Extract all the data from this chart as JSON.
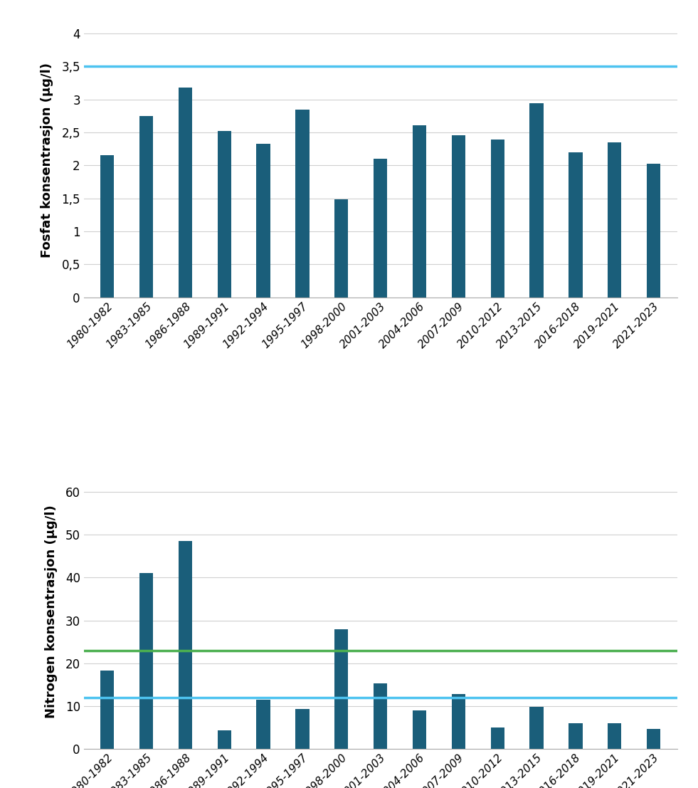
{
  "categories": [
    "1980-1982",
    "1983-1985",
    "1986-1988",
    "1989-1991",
    "1992-1994",
    "1995-1997",
    "1998-2000",
    "2001-2003",
    "2004-2006",
    "2007-2009",
    "2010-2012",
    "2013-2015",
    "2016-2018",
    "2019-2021",
    "2021-2023"
  ],
  "fosfat_values": [
    2.15,
    2.75,
    3.18,
    2.52,
    2.33,
    2.85,
    1.49,
    2.1,
    2.61,
    2.46,
    2.39,
    2.94,
    2.2,
    2.35,
    2.02
  ],
  "nitrogen_values": [
    18.2,
    41.0,
    48.5,
    4.2,
    11.5,
    9.3,
    28.0,
    15.2,
    9.0,
    12.8,
    5.0,
    9.8,
    6.0,
    6.0,
    4.6
  ],
  "fosfat_blue_line": 3.5,
  "nitrogen_blue_line": 12.0,
  "nitrogen_green_line": 23.0,
  "bar_color": "#1a5e7a",
  "blue_line_color": "#4dc3f0",
  "green_line_color": "#4caf50",
  "fosfat_ylabel": "Fosfat konsentrasjon (µg/l)",
  "nitrogen_ylabel": "Nitrogen konsentrasjon (µg/l)",
  "fosfat_yticks": [
    0,
    0.5,
    1,
    1.5,
    2,
    2.5,
    3,
    3.5,
    4
  ],
  "fosfat_yticklabels": [
    "0",
    "0,5",
    "1",
    "1,5",
    "2",
    "2,5",
    "3",
    "3,5",
    "4"
  ],
  "fosfat_ylim": [
    0,
    4.15
  ],
  "nitrogen_yticks": [
    0,
    10,
    20,
    30,
    40,
    50,
    60
  ],
  "nitrogen_yticklabels": [
    "0",
    "10",
    "20",
    "30",
    "40",
    "50",
    "60"
  ],
  "nitrogen_ylim": [
    0,
    64
  ],
  "background_color": "#ffffff",
  "grid_color": "#d0d0d0",
  "bar_width": 0.35,
  "tick_fontsize": 12,
  "ylabel_fontsize": 13
}
